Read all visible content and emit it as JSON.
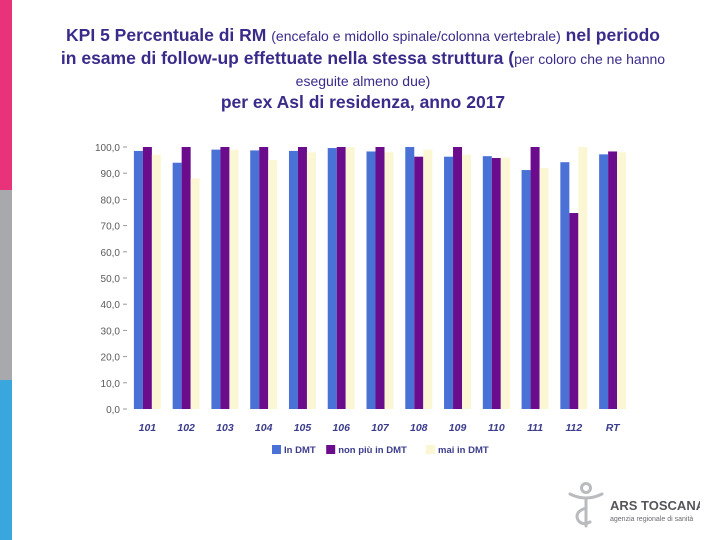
{
  "title": {
    "line1_bold": "KPI 5 Percentuale di RM",
    "line1_small": "(encefalo e midollo spinale/colonna vertebrale)",
    "line1_end": "nel periodo",
    "line2_bold": "in esame di follow-up effettuate nella stessa struttura (",
    "line2_small": "per coloro che ne hanno",
    "line3": "eseguite almeno due)",
    "line4": "per ex Asl di residenza, anno 2017"
  },
  "colors": {
    "title": "#3a2a8a",
    "series_blue": "#4a72d6",
    "series_purple": "#6a0c8c",
    "series_yellow": "#fbf7d4",
    "stripe_pink": "#e8327a",
    "stripe_gray": "#a7a9ac",
    "stripe_cyan": "#3aa6de"
  },
  "chart_data": {
    "type": "bar",
    "categories": [
      "101",
      "102",
      "103",
      "104",
      "105",
      "106",
      "107",
      "108",
      "109",
      "110",
      "111",
      "112",
      "RT"
    ],
    "series": [
      {
        "name": "In DMT",
        "values": [
          98.5,
          94.0,
          99.0,
          98.7,
          98.5,
          99.6,
          98.3,
          100.0,
          96.3,
          96.5,
          91.2,
          94.2,
          97.2
        ]
      },
      {
        "name": "non più in DMT",
        "values": [
          100.0,
          100.0,
          100.0,
          100.0,
          100.0,
          100.0,
          100.0,
          96.3,
          100.0,
          95.8,
          100.0,
          74.8,
          98.3
        ]
      },
      {
        "name": "mai in DMT",
        "values": [
          97.0,
          88.0,
          99.0,
          95.0,
          98.0,
          100.0,
          98.0,
          99.0,
          97.0,
          96.0,
          92.0,
          100.0,
          98.0
        ]
      }
    ],
    "y_ticks": [
      "0,0",
      "10,0",
      "20,0",
      "30,0",
      "40,0",
      "50,0",
      "60,0",
      "70,0",
      "80,0",
      "90,0",
      "100,0"
    ],
    "ylim": [
      0,
      100
    ],
    "legend_position": "bottom",
    "title": "",
    "xlabel": "",
    "ylabel": ""
  },
  "logo": {
    "name": "ARS TOSCANA",
    "subtitle": "agenzia regionale di sanità"
  }
}
